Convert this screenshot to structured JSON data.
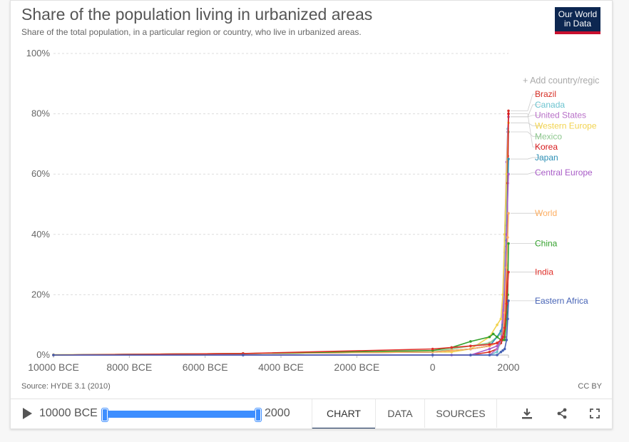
{
  "header": {
    "title": "Share of the population living in urbanized areas",
    "subtitle": "Share of the total population, in a particular region or country, who live in urbanized areas.",
    "logo_line1": "Our World",
    "logo_line2": "in Data"
  },
  "add_country": "+ Add country/regic",
  "source": "Source: HYDE 3.1 (2010)",
  "license": "CC BY",
  "footer": {
    "time_start": "10000 BCE",
    "time_end": "2000",
    "tabs": [
      "CHART",
      "DATA",
      "SOURCES"
    ]
  },
  "colors": {
    "brand_navy": "#0d2751",
    "brand_red": "#c8102e",
    "slider": "#3d8eff"
  },
  "chart_data": {
    "type": "line",
    "title": "Share of the population living in urbanized areas",
    "xlabel": "",
    "ylabel": "",
    "xlim": [
      -10000,
      2000
    ],
    "ylim": [
      0,
      100
    ],
    "x_ticks": [
      {
        "value": -10000,
        "label": "10000 BCE"
      },
      {
        "value": -8000,
        "label": "8000 BCE"
      },
      {
        "value": -6000,
        "label": "6000 BCE"
      },
      {
        "value": -4000,
        "label": "4000 BCE"
      },
      {
        "value": -2000,
        "label": "2000 BCE"
      },
      {
        "value": 0,
        "label": "0"
      },
      {
        "value": 2000,
        "label": "2000"
      }
    ],
    "y_ticks": [
      {
        "value": 0,
        "label": "0%"
      },
      {
        "value": 20,
        "label": "20%"
      },
      {
        "value": 40,
        "label": "40%"
      },
      {
        "value": 60,
        "label": "60%"
      },
      {
        "value": 80,
        "label": "80%"
      },
      {
        "value": 100,
        "label": "100%"
      }
    ],
    "grid": true,
    "legend_position": "right",
    "series": [
      {
        "name": "Brazil",
        "color": "#d73027",
        "label_value": 86.5,
        "points": [
          [
            -10000,
            0
          ],
          [
            -5000,
            0
          ],
          [
            0,
            0
          ],
          [
            1000,
            0
          ],
          [
            1500,
            1
          ],
          [
            1700,
            2
          ],
          [
            1800,
            4
          ],
          [
            1850,
            5
          ],
          [
            1900,
            10
          ],
          [
            1950,
            36
          ],
          [
            1980,
            66
          ],
          [
            2000,
            81
          ]
        ]
      },
      {
        "name": "Canada",
        "color": "#6bc3cf",
        "label_value": 83,
        "points": [
          [
            -10000,
            0
          ],
          [
            -5000,
            0
          ],
          [
            0,
            0
          ],
          [
            1000,
            0
          ],
          [
            1500,
            0
          ],
          [
            1700,
            1
          ],
          [
            1800,
            5
          ],
          [
            1850,
            10
          ],
          [
            1900,
            34
          ],
          [
            1950,
            60
          ],
          [
            1980,
            75
          ],
          [
            2000,
            79
          ]
        ]
      },
      {
        "name": "United States",
        "color": "#b870c8",
        "label_value": 79.5,
        "points": [
          [
            -10000,
            0
          ],
          [
            -5000,
            0
          ],
          [
            0,
            0
          ],
          [
            1000,
            0
          ],
          [
            1500,
            0
          ],
          [
            1700,
            2
          ],
          [
            1800,
            5
          ],
          [
            1850,
            15
          ],
          [
            1900,
            40
          ],
          [
            1950,
            64
          ],
          [
            1980,
            74
          ],
          [
            2000,
            79
          ]
        ]
      },
      {
        "name": "Western Europe",
        "color": "#f2d34f",
        "label_value": 76,
        "points": [
          [
            -10000,
            0.1
          ],
          [
            -5000,
            0.5
          ],
          [
            0,
            1
          ],
          [
            500,
            1
          ],
          [
            1000,
            2
          ],
          [
            1500,
            6
          ],
          [
            1700,
            10
          ],
          [
            1800,
            12
          ],
          [
            1850,
            20
          ],
          [
            1900,
            40
          ],
          [
            1950,
            60
          ],
          [
            2000,
            77
          ]
        ]
      },
      {
        "name": "Mexico",
        "color": "#8dc78e",
        "label_value": 72.5,
        "points": [
          [
            -10000,
            0
          ],
          [
            -5000,
            0.5
          ],
          [
            0,
            1
          ],
          [
            500,
            2
          ],
          [
            1000,
            3
          ],
          [
            1500,
            4
          ],
          [
            1700,
            6
          ],
          [
            1800,
            7
          ],
          [
            1850,
            8
          ],
          [
            1900,
            15
          ],
          [
            1950,
            43
          ],
          [
            2000,
            74
          ]
        ]
      },
      {
        "name": "Korea",
        "color": "#d7191c",
        "label_value": 69,
        "points": [
          [
            -10000,
            0
          ],
          [
            -5000,
            0.5
          ],
          [
            0,
            1
          ],
          [
            1000,
            2
          ],
          [
            1500,
            3
          ],
          [
            1700,
            4
          ],
          [
            1800,
            5
          ],
          [
            1900,
            6
          ],
          [
            1950,
            21
          ],
          [
            1980,
            57
          ],
          [
            2000,
            80
          ]
        ]
      },
      {
        "name": "Japan",
        "color": "#2c8fb5",
        "label_value": 65.5,
        "points": [
          [
            -10000,
            0
          ],
          [
            -5000,
            0.5
          ],
          [
            0,
            1
          ],
          [
            1000,
            2
          ],
          [
            1500,
            3
          ],
          [
            1700,
            6
          ],
          [
            1800,
            8
          ],
          [
            1850,
            10
          ],
          [
            1900,
            15
          ],
          [
            1950,
            38
          ],
          [
            2000,
            65
          ]
        ]
      },
      {
        "name": "Central Europe",
        "color": "#a85bc7",
        "label_value": 60.5,
        "points": [
          [
            -10000,
            0
          ],
          [
            -5000,
            0
          ],
          [
            0,
            0
          ],
          [
            500,
            0
          ],
          [
            1000,
            0
          ],
          [
            1500,
            2
          ],
          [
            1700,
            3
          ],
          [
            1800,
            5
          ],
          [
            1850,
            8
          ],
          [
            1900,
            20
          ],
          [
            1950,
            40
          ],
          [
            2000,
            60
          ]
        ]
      },
      {
        "name": "World",
        "color": "#fdae61",
        "label_value": 47,
        "points": [
          [
            -10000,
            0
          ],
          [
            -5000,
            0.5
          ],
          [
            0,
            1
          ],
          [
            500,
            1.5
          ],
          [
            1000,
            2
          ],
          [
            1500,
            3
          ],
          [
            1700,
            4
          ],
          [
            1800,
            5
          ],
          [
            1850,
            6
          ],
          [
            1900,
            14
          ],
          [
            1950,
            29
          ],
          [
            1980,
            39
          ],
          [
            2000,
            47
          ]
        ]
      },
      {
        "name": "China",
        "color": "#33a02c",
        "label_value": 37,
        "points": [
          [
            -10000,
            0
          ],
          [
            -5000,
            0.5
          ],
          [
            0,
            1.5
          ],
          [
            500,
            2.5
          ],
          [
            1000,
            4.5
          ],
          [
            1500,
            6
          ],
          [
            1600,
            7
          ],
          [
            1700,
            6
          ],
          [
            1800,
            5
          ],
          [
            1900,
            5
          ],
          [
            1950,
            12
          ],
          [
            1980,
            20
          ],
          [
            2000,
            37
          ]
        ]
      },
      {
        "name": "India",
        "color": "#e0302a",
        "label_value": 27.5,
        "points": [
          [
            -10000,
            0
          ],
          [
            -5000,
            0.5
          ],
          [
            0,
            2
          ],
          [
            500,
            2.5
          ],
          [
            1000,
            3
          ],
          [
            1500,
            3.5
          ],
          [
            1700,
            4
          ],
          [
            1800,
            5
          ],
          [
            1850,
            6
          ],
          [
            1900,
            9
          ],
          [
            1950,
            17
          ],
          [
            2000,
            27.5
          ]
        ]
      },
      {
        "name": "Eastern Africa",
        "color": "#4562b5",
        "label_value": 18,
        "points": [
          [
            -10000,
            0
          ],
          [
            -5000,
            0
          ],
          [
            0,
            0
          ],
          [
            1000,
            0
          ],
          [
            1500,
            0
          ],
          [
            1700,
            0
          ],
          [
            1800,
            1
          ],
          [
            1850,
            1.5
          ],
          [
            1900,
            2
          ],
          [
            1950,
            5
          ],
          [
            1980,
            12
          ],
          [
            2000,
            18
          ]
        ]
      }
    ]
  }
}
